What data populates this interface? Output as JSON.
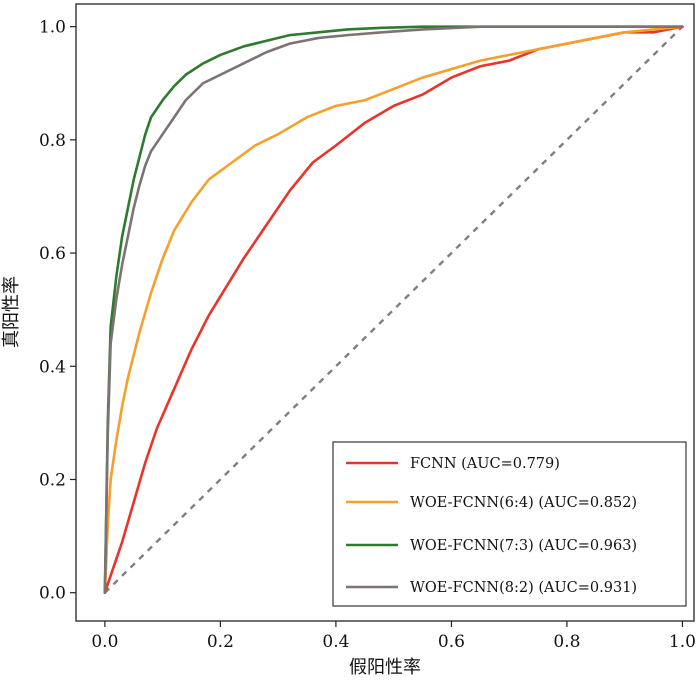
{
  "chart_data": {
    "type": "line",
    "title": "",
    "xlabel": "假阳性率",
    "ylabel": "真阳性率",
    "xlim": [
      -0.05,
      1.02
    ],
    "ylim": [
      -0.05,
      1.04
    ],
    "xticks": [
      0.0,
      0.2,
      0.4,
      0.6,
      0.8,
      1.0
    ],
    "yticks": [
      0.0,
      0.2,
      0.4,
      0.6,
      0.8,
      1.0
    ],
    "xtick_labels": [
      "0.0",
      "0.2",
      "0.4",
      "0.6",
      "0.8",
      "1.0"
    ],
    "ytick_labels": [
      "0.0",
      "0.2",
      "0.4",
      "0.6",
      "0.8",
      "1.0"
    ],
    "grid": false,
    "legend_position": "bottom-right",
    "diagonal": {
      "x": [
        0,
        1
      ],
      "y": [
        0,
        1
      ],
      "style": "dashed",
      "color": "#7f7f7f"
    },
    "series": [
      {
        "name": "FCNN  (AUC=0.779)",
        "color": "#e8342b",
        "x": [
          0,
          0.01,
          0.02,
          0.03,
          0.05,
          0.07,
          0.09,
          0.12,
          0.15,
          0.18,
          0.21,
          0.24,
          0.28,
          0.32,
          0.36,
          0.4,
          0.45,
          0.5,
          0.55,
          0.6,
          0.65,
          0.7,
          0.75,
          0.8,
          0.85,
          0.9,
          0.95,
          1.0
        ],
        "y": [
          0,
          0.03,
          0.06,
          0.09,
          0.16,
          0.23,
          0.29,
          0.36,
          0.43,
          0.49,
          0.54,
          0.59,
          0.65,
          0.71,
          0.76,
          0.79,
          0.83,
          0.86,
          0.88,
          0.91,
          0.93,
          0.94,
          0.96,
          0.97,
          0.98,
          0.99,
          0.99,
          1.0
        ]
      },
      {
        "name": "WOE-FCNN(6:4) (AUC=0.852)",
        "color": "#f5a02c",
        "x": [
          0,
          0.005,
          0.01,
          0.02,
          0.03,
          0.04,
          0.05,
          0.06,
          0.08,
          0.1,
          0.12,
          0.15,
          0.18,
          0.22,
          0.26,
          0.3,
          0.35,
          0.4,
          0.45,
          0.5,
          0.55,
          0.6,
          0.65,
          0.7,
          0.75,
          0.8,
          0.85,
          0.9,
          0.95,
          1.0
        ],
        "y": [
          0,
          0.12,
          0.2,
          0.27,
          0.33,
          0.38,
          0.42,
          0.46,
          0.53,
          0.59,
          0.64,
          0.69,
          0.73,
          0.76,
          0.79,
          0.81,
          0.84,
          0.86,
          0.87,
          0.89,
          0.91,
          0.925,
          0.94,
          0.95,
          0.96,
          0.97,
          0.98,
          0.99,
          0.995,
          1.0
        ]
      },
      {
        "name": "WOE-FCNN(7:3) (AUC=0.963)",
        "color": "#2e7a2e",
        "x": [
          0,
          0.005,
          0.01,
          0.02,
          0.03,
          0.04,
          0.05,
          0.06,
          0.07,
          0.08,
          0.1,
          0.12,
          0.14,
          0.17,
          0.2,
          0.24,
          0.28,
          0.32,
          0.37,
          0.42,
          0.48,
          0.55,
          0.65,
          0.75,
          0.85,
          1.0
        ],
        "y": [
          0,
          0.3,
          0.47,
          0.56,
          0.63,
          0.68,
          0.73,
          0.77,
          0.81,
          0.84,
          0.87,
          0.895,
          0.915,
          0.935,
          0.95,
          0.965,
          0.975,
          0.985,
          0.99,
          0.995,
          0.998,
          1.0,
          1.0,
          1.0,
          1.0,
          1.0
        ]
      },
      {
        "name": "WOE-FCNN(8:2) (AUC=0.931)",
        "color": "#7d7373",
        "x": [
          0,
          0.005,
          0.01,
          0.02,
          0.03,
          0.04,
          0.05,
          0.06,
          0.07,
          0.08,
          0.1,
          0.12,
          0.14,
          0.17,
          0.2,
          0.24,
          0.28,
          0.32,
          0.37,
          0.42,
          0.48,
          0.55,
          0.65,
          0.75,
          0.85,
          1.0
        ],
        "y": [
          0,
          0.28,
          0.44,
          0.52,
          0.58,
          0.63,
          0.68,
          0.72,
          0.755,
          0.78,
          0.81,
          0.84,
          0.87,
          0.9,
          0.915,
          0.935,
          0.955,
          0.97,
          0.98,
          0.985,
          0.99,
          0.995,
          1.0,
          1.0,
          1.0,
          1.0
        ]
      }
    ]
  }
}
